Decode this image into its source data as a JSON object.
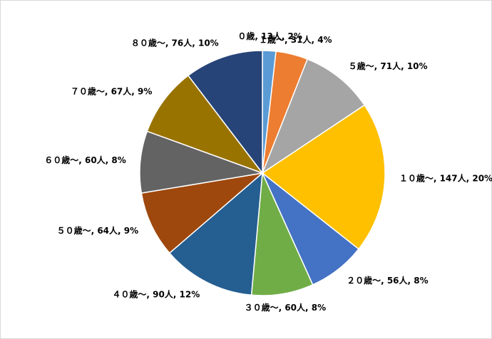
{
  "chart_data": {
    "type": "pie",
    "values": [
      13,
      31,
      71,
      147,
      56,
      60,
      90,
      64,
      60,
      67,
      76
    ],
    "value_labels": [
      "０歳, 13人, 2%",
      "１歳～, 31人, 4%",
      "５歳～, 71人, 10%",
      "１０歳～, 147人, 20%",
      "２０歳～, 56人, 8%",
      "３０歳～, 60人, 8%",
      "４０歳～, 90人, 12%",
      "５０歳～, 64人, 9%",
      "６０歳～, 60人, 8%",
      "７０歳～, 67人, 9%",
      "８０歳～, 76人, 10%"
    ],
    "colors": [
      "#5b9bd5",
      "#ed7d31",
      "#a5a5a5",
      "#ffc000",
      "#4472c4",
      "#70ad47",
      "#255e91",
      "#9e480e",
      "#636363",
      "#997300",
      "#264478"
    ]
  }
}
